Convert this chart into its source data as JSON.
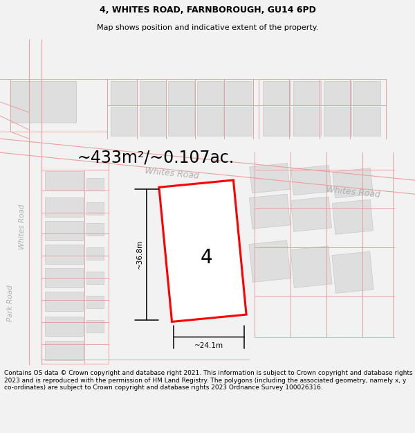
{
  "title_line1": "4, WHITES ROAD, FARNBOROUGH, GU14 6PD",
  "title_line2": "Map shows position and indicative extent of the property.",
  "area_text": "~433m²/~0.107ac.",
  "width_label": "~24.1m",
  "height_label": "~36.8m",
  "plot_number": "4",
  "road_label_diagonal": "Whites Road",
  "road_label_right": "Whites Road",
  "road_label_left": "Whites Road",
  "road_label_vertical": "Park Road",
  "footer_text": "Contains OS data © Crown copyright and database right 2021. This information is subject to Crown copyright and database rights 2023 and is reproduced with the permission of HM Land Registry. The polygons (including the associated geometry, namely x, y co-ordinates) are subject to Crown copyright and database rights 2023 Ordnance Survey 100026316.",
  "bg_color": "#f2f2f2",
  "map_bg_color": "#ffffff",
  "building_color": "#dedede",
  "building_ec": "#c8c8c8",
  "road_color": "#e8a0a0",
  "plot_color": "#ff0000",
  "plot_fill": "#ffffff",
  "dim_color": "#000000",
  "road_label_color": "#b0b0b0",
  "title_fs": 9,
  "subtitle_fs": 8,
  "area_fs": 17,
  "road_fs": 9,
  "dim_fs": 7.5,
  "footer_fs": 6.5,
  "plot_number_fs": 20
}
